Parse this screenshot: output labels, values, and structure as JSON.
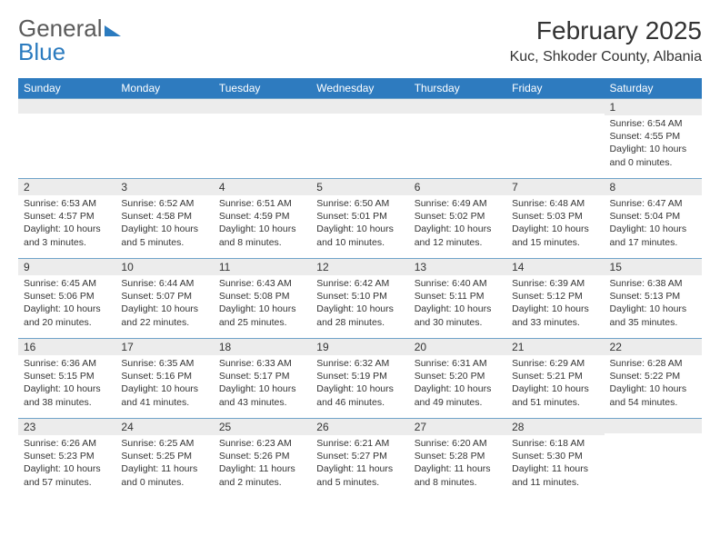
{
  "logo": {
    "text1": "General",
    "text2": "Blue"
  },
  "title": "February 2025",
  "location": "Kuc, Shkoder County, Albania",
  "colors": {
    "header_bg": "#2e7bbf",
    "header_text": "#ffffff",
    "daynum_bg": "#ececec",
    "grid_line": "#6fa3c9",
    "text": "#333333",
    "logo_gray": "#5a5a5a",
    "logo_blue": "#2b7bbf"
  },
  "day_headers": [
    "Sunday",
    "Monday",
    "Tuesday",
    "Wednesday",
    "Thursday",
    "Friday",
    "Saturday"
  ],
  "weeks": [
    [
      {
        "n": "",
        "sr": "",
        "ss": "",
        "dl": ""
      },
      {
        "n": "",
        "sr": "",
        "ss": "",
        "dl": ""
      },
      {
        "n": "",
        "sr": "",
        "ss": "",
        "dl": ""
      },
      {
        "n": "",
        "sr": "",
        "ss": "",
        "dl": ""
      },
      {
        "n": "",
        "sr": "",
        "ss": "",
        "dl": ""
      },
      {
        "n": "",
        "sr": "",
        "ss": "",
        "dl": ""
      },
      {
        "n": "1",
        "sr": "Sunrise: 6:54 AM",
        "ss": "Sunset: 4:55 PM",
        "dl": "Daylight: 10 hours and 0 minutes."
      }
    ],
    [
      {
        "n": "2",
        "sr": "Sunrise: 6:53 AM",
        "ss": "Sunset: 4:57 PM",
        "dl": "Daylight: 10 hours and 3 minutes."
      },
      {
        "n": "3",
        "sr": "Sunrise: 6:52 AM",
        "ss": "Sunset: 4:58 PM",
        "dl": "Daylight: 10 hours and 5 minutes."
      },
      {
        "n": "4",
        "sr": "Sunrise: 6:51 AM",
        "ss": "Sunset: 4:59 PM",
        "dl": "Daylight: 10 hours and 8 minutes."
      },
      {
        "n": "5",
        "sr": "Sunrise: 6:50 AM",
        "ss": "Sunset: 5:01 PM",
        "dl": "Daylight: 10 hours and 10 minutes."
      },
      {
        "n": "6",
        "sr": "Sunrise: 6:49 AM",
        "ss": "Sunset: 5:02 PM",
        "dl": "Daylight: 10 hours and 12 minutes."
      },
      {
        "n": "7",
        "sr": "Sunrise: 6:48 AM",
        "ss": "Sunset: 5:03 PM",
        "dl": "Daylight: 10 hours and 15 minutes."
      },
      {
        "n": "8",
        "sr": "Sunrise: 6:47 AM",
        "ss": "Sunset: 5:04 PM",
        "dl": "Daylight: 10 hours and 17 minutes."
      }
    ],
    [
      {
        "n": "9",
        "sr": "Sunrise: 6:45 AM",
        "ss": "Sunset: 5:06 PM",
        "dl": "Daylight: 10 hours and 20 minutes."
      },
      {
        "n": "10",
        "sr": "Sunrise: 6:44 AM",
        "ss": "Sunset: 5:07 PM",
        "dl": "Daylight: 10 hours and 22 minutes."
      },
      {
        "n": "11",
        "sr": "Sunrise: 6:43 AM",
        "ss": "Sunset: 5:08 PM",
        "dl": "Daylight: 10 hours and 25 minutes."
      },
      {
        "n": "12",
        "sr": "Sunrise: 6:42 AM",
        "ss": "Sunset: 5:10 PM",
        "dl": "Daylight: 10 hours and 28 minutes."
      },
      {
        "n": "13",
        "sr": "Sunrise: 6:40 AM",
        "ss": "Sunset: 5:11 PM",
        "dl": "Daylight: 10 hours and 30 minutes."
      },
      {
        "n": "14",
        "sr": "Sunrise: 6:39 AM",
        "ss": "Sunset: 5:12 PM",
        "dl": "Daylight: 10 hours and 33 minutes."
      },
      {
        "n": "15",
        "sr": "Sunrise: 6:38 AM",
        "ss": "Sunset: 5:13 PM",
        "dl": "Daylight: 10 hours and 35 minutes."
      }
    ],
    [
      {
        "n": "16",
        "sr": "Sunrise: 6:36 AM",
        "ss": "Sunset: 5:15 PM",
        "dl": "Daylight: 10 hours and 38 minutes."
      },
      {
        "n": "17",
        "sr": "Sunrise: 6:35 AM",
        "ss": "Sunset: 5:16 PM",
        "dl": "Daylight: 10 hours and 41 minutes."
      },
      {
        "n": "18",
        "sr": "Sunrise: 6:33 AM",
        "ss": "Sunset: 5:17 PM",
        "dl": "Daylight: 10 hours and 43 minutes."
      },
      {
        "n": "19",
        "sr": "Sunrise: 6:32 AM",
        "ss": "Sunset: 5:19 PM",
        "dl": "Daylight: 10 hours and 46 minutes."
      },
      {
        "n": "20",
        "sr": "Sunrise: 6:31 AM",
        "ss": "Sunset: 5:20 PM",
        "dl": "Daylight: 10 hours and 49 minutes."
      },
      {
        "n": "21",
        "sr": "Sunrise: 6:29 AM",
        "ss": "Sunset: 5:21 PM",
        "dl": "Daylight: 10 hours and 51 minutes."
      },
      {
        "n": "22",
        "sr": "Sunrise: 6:28 AM",
        "ss": "Sunset: 5:22 PM",
        "dl": "Daylight: 10 hours and 54 minutes."
      }
    ],
    [
      {
        "n": "23",
        "sr": "Sunrise: 6:26 AM",
        "ss": "Sunset: 5:23 PM",
        "dl": "Daylight: 10 hours and 57 minutes."
      },
      {
        "n": "24",
        "sr": "Sunrise: 6:25 AM",
        "ss": "Sunset: 5:25 PM",
        "dl": "Daylight: 11 hours and 0 minutes."
      },
      {
        "n": "25",
        "sr": "Sunrise: 6:23 AM",
        "ss": "Sunset: 5:26 PM",
        "dl": "Daylight: 11 hours and 2 minutes."
      },
      {
        "n": "26",
        "sr": "Sunrise: 6:21 AM",
        "ss": "Sunset: 5:27 PM",
        "dl": "Daylight: 11 hours and 5 minutes."
      },
      {
        "n": "27",
        "sr": "Sunrise: 6:20 AM",
        "ss": "Sunset: 5:28 PM",
        "dl": "Daylight: 11 hours and 8 minutes."
      },
      {
        "n": "28",
        "sr": "Sunrise: 6:18 AM",
        "ss": "Sunset: 5:30 PM",
        "dl": "Daylight: 11 hours and 11 minutes."
      },
      {
        "n": "",
        "sr": "",
        "ss": "",
        "dl": ""
      }
    ]
  ]
}
